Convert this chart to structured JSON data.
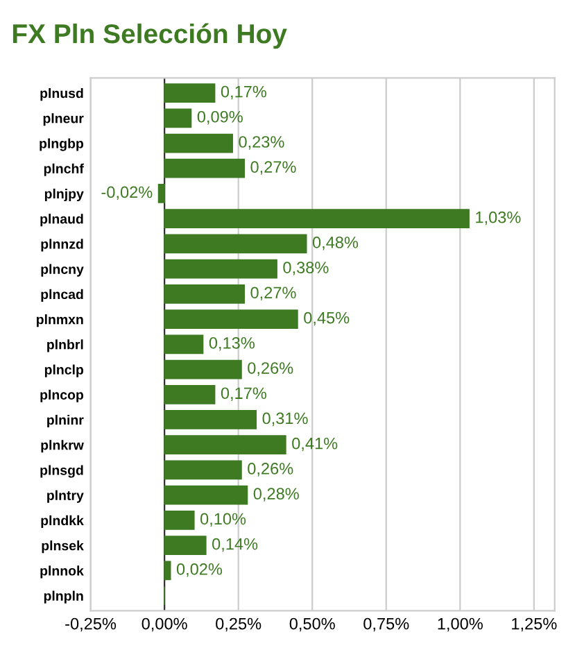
{
  "chart_data": {
    "type": "bar",
    "orientation": "horizontal",
    "title": "FX Pln Selección Hoy",
    "categories": [
      "plnusd",
      "plneur",
      "plngbp",
      "plnchf",
      "plnjpy",
      "plnaud",
      "plnnzd",
      "plncny",
      "plncad",
      "plnmxn",
      "plnbrl",
      "plnclp",
      "plncop",
      "plninr",
      "plnkrw",
      "plnsgd",
      "plntry",
      "plndkk",
      "plnsek",
      "plnnok",
      "plnpln"
    ],
    "values": [
      0.17,
      0.09,
      0.23,
      0.27,
      -0.02,
      1.03,
      0.48,
      0.38,
      0.27,
      0.45,
      0.13,
      0.26,
      0.17,
      0.31,
      0.41,
      0.26,
      0.28,
      0.1,
      0.14,
      0.02,
      0
    ],
    "value_labels": [
      "0,17%",
      "0,09%",
      "0,23%",
      "0,27%",
      "-0,02%",
      "1,03%",
      "0,48%",
      "0,38%",
      "0,27%",
      "0,45%",
      "0,13%",
      "0,26%",
      "0,17%",
      "0,31%",
      "0,41%",
      "0,26%",
      "0,28%",
      "0,10%",
      "0,14%",
      "0,02%",
      null
    ],
    "color": "#3d7a22",
    "xlim": [
      -0.25,
      1.32
    ],
    "xticks": [
      {
        "value": -0.25,
        "label": "-0,25%"
      },
      {
        "value": 0,
        "label": "0,00%"
      },
      {
        "value": 0.25,
        "label": "0,25%"
      },
      {
        "value": 0.5,
        "label": "0,50%"
      },
      {
        "value": 0.75,
        "label": "0,75%"
      },
      {
        "value": 1.0,
        "label": "1,00%"
      },
      {
        "value": 1.25,
        "label": "1,25%"
      }
    ],
    "grid": "x",
    "legend": false
  }
}
